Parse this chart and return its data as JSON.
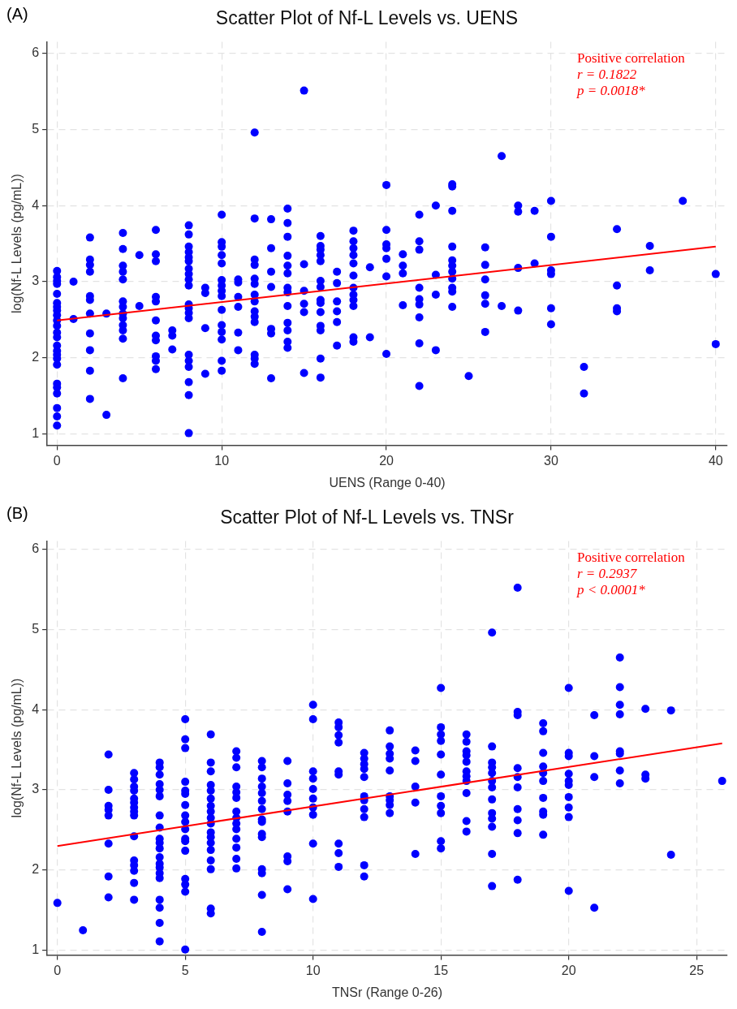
{
  "chart_data": [
    {
      "type": "scatter",
      "title": "Scatter Plot of Nf-L Levels vs. UENS",
      "xlabel": "UENS (Range 0-40)",
      "ylabel": "log(Nf-L Levels (pg/mL))",
      "annotations": [
        "(A)",
        "Positive correlation",
        "r = 0.1822",
        "p = 0.0018*"
      ],
      "xlim": [
        -0.6,
        40.7
      ],
      "ylim": [
        0.85,
        6.15
      ],
      "xticks": [
        0,
        10,
        20,
        30,
        40
      ],
      "yticks": [
        1,
        2,
        3,
        4,
        5,
        6
      ],
      "grid": true,
      "legend": false,
      "series": [
        {
          "type": "scatter",
          "color": "#0000ff",
          "marker": "circle",
          "x": [
            0,
            0,
            0,
            0,
            0,
            0,
            0,
            0,
            0,
            0,
            0,
            0,
            0,
            0,
            0,
            0,
            0,
            0,
            0,
            0,
            0,
            0,
            0,
            0,
            1,
            1,
            2,
            2,
            2,
            2,
            2,
            2,
            2,
            2,
            2,
            2,
            2,
            3,
            3,
            4,
            4,
            4,
            4,
            4,
            4,
            4,
            4,
            4,
            4,
            4,
            4,
            4,
            5,
            5,
            6,
            6,
            6,
            6,
            6,
            6,
            6,
            6,
            6,
            6,
            6,
            7,
            7,
            7,
            8,
            8,
            8,
            8,
            8,
            8,
            8,
            8,
            8,
            8,
            8,
            8,
            8,
            8,
            8,
            8,
            8,
            8,
            8,
            8,
            9,
            9,
            9,
            9,
            10,
            10,
            10,
            10,
            10,
            10,
            10,
            10,
            10,
            10,
            10,
            10,
            10,
            10,
            10,
            11,
            11,
            11,
            11,
            11,
            11,
            12,
            12,
            12,
            12,
            12,
            12,
            12,
            12,
            12,
            12,
            12,
            12,
            12,
            12,
            13,
            13,
            13,
            13,
            13,
            13,
            13,
            14,
            14,
            14,
            14,
            14,
            14,
            14,
            14,
            14,
            14,
            14,
            14,
            14,
            15,
            15,
            15,
            15,
            15,
            15,
            16,
            16,
            16,
            16,
            16,
            16,
            16,
            16,
            16,
            16,
            16,
            16,
            16,
            16,
            17,
            17,
            17,
            17,
            17,
            17,
            18,
            18,
            18,
            18,
            18,
            18,
            18,
            18,
            18,
            18,
            18,
            18,
            19,
            19,
            20,
            20,
            20,
            20,
            20,
            20,
            20,
            21,
            21,
            21,
            21,
            22,
            22,
            22,
            22,
            22,
            22,
            22,
            22,
            22,
            23,
            23,
            23,
            23,
            24,
            24,
            24,
            24,
            24,
            24,
            24,
            24,
            24,
            24,
            24,
            25,
            26,
            26,
            26,
            26,
            26,
            26,
            27,
            27,
            28,
            28,
            28,
            28,
            29,
            29,
            30,
            30,
            30,
            30,
            30,
            30,
            32,
            32,
            34,
            34,
            34,
            34,
            36,
            36,
            38,
            40,
            40
          ],
          "values": [
            3.14,
            3.06,
            3.01,
            2.97,
            2.84,
            2.72,
            2.67,
            2.62,
            2.56,
            2.49,
            2.42,
            2.33,
            2.27,
            2.16,
            2.09,
            2.04,
            1.99,
            1.91,
            1.66,
            1.61,
            1.53,
            1.34,
            1.23,
            1.11,
            3.0,
            2.51,
            3.58,
            3.29,
            3.22,
            3.13,
            2.81,
            2.76,
            2.58,
            2.32,
            2.1,
            1.83,
            1.46,
            2.58,
            1.25,
            3.64,
            3.43,
            3.21,
            3.13,
            3.03,
            2.74,
            2.67,
            2.58,
            2.52,
            2.43,
            2.36,
            2.25,
            1.73,
            3.35,
            2.68,
            3.68,
            3.36,
            3.27,
            2.8,
            2.74,
            2.49,
            2.29,
            2.23,
            2.02,
            1.96,
            1.85,
            2.36,
            2.29,
            2.11,
            3.74,
            3.62,
            3.46,
            3.39,
            3.32,
            3.27,
            3.17,
            3.1,
            3.03,
            2.95,
            2.7,
            2.65,
            2.59,
            2.52,
            2.04,
            1.96,
            1.88,
            1.68,
            1.51,
            1.01,
            2.92,
            2.85,
            2.39,
            1.79,
            3.88,
            3.52,
            3.46,
            3.35,
            3.24,
            3.02,
            2.95,
            2.88,
            2.81,
            2.63,
            2.43,
            2.34,
            2.24,
            1.96,
            1.83,
            3.03,
            2.99,
            2.8,
            2.67,
            2.33,
            2.1,
            4.96,
            3.83,
            3.29,
            3.22,
            3.04,
            2.97,
            2.83,
            2.74,
            2.61,
            2.54,
            2.47,
            2.04,
            1.99,
            1.92,
            3.82,
            3.44,
            3.13,
            2.93,
            2.38,
            2.32,
            1.73,
            3.96,
            3.77,
            3.59,
            3.34,
            3.21,
            3.11,
            2.92,
            2.86,
            2.68,
            2.46,
            2.36,
            2.21,
            2.13,
            5.51,
            3.23,
            2.88,
            2.71,
            2.6,
            1.8,
            3.6,
            3.47,
            3.42,
            3.35,
            3.27,
            3.01,
            2.93,
            2.76,
            2.72,
            2.6,
            2.42,
            2.36,
            1.99,
            1.74,
            3.13,
            2.98,
            2.74,
            2.61,
            2.47,
            2.16,
            3.67,
            3.53,
            3.44,
            3.35,
            3.24,
            3.08,
            2.92,
            2.83,
            2.76,
            2.68,
            2.27,
            2.21,
            3.19,
            2.27,
            4.27,
            3.68,
            3.49,
            3.44,
            3.3,
            3.07,
            2.05,
            3.36,
            3.21,
            3.11,
            2.69,
            3.88,
            3.53,
            3.42,
            2.92,
            2.77,
            2.7,
            2.53,
            2.19,
            1.63,
            4.0,
            3.09,
            2.83,
            2.1,
            4.28,
            4.25,
            3.93,
            3.46,
            3.28,
            3.21,
            3.13,
            3.04,
            2.92,
            2.87,
            2.67,
            1.76,
            3.45,
            3.22,
            3.03,
            2.82,
            2.71,
            2.34,
            4.65,
            2.68,
            4.0,
            3.92,
            3.18,
            2.62,
            3.93,
            3.24,
            4.06,
            3.59,
            3.15,
            3.1,
            2.65,
            2.44,
            1.88,
            1.53,
            3.69,
            2.95,
            2.65,
            2.61,
            3.47,
            3.15,
            4.06,
            3.1,
            2.18
          ]
        },
        {
          "type": "line",
          "color": "#ff0000",
          "marker": "none",
          "x": [
            0,
            40
          ],
          "values": [
            2.49,
            3.46
          ]
        }
      ]
    },
    {
      "type": "scatter",
      "title": "Scatter Plot of Nf-L Levels vs. TNSr",
      "xlabel": "TNSr (Range 0-26)",
      "ylabel": "log(Nf-L Levels (pg/mL))",
      "annotations": [
        "(B)",
        "Positive correlation",
        "r = 0.2937",
        "p < 0.0001*"
      ],
      "xlim": [
        -0.4,
        26.2
      ],
      "ylim": [
        0.94,
        6.1
      ],
      "xticks": [
        0,
        5,
        10,
        15,
        20,
        25
      ],
      "yticks": [
        1,
        2,
        3,
        4,
        5,
        6
      ],
      "grid": true,
      "legend": false,
      "series": [
        {
          "type": "scatter",
          "color": "#0000ff",
          "marker": "circle",
          "x": [
            0,
            1,
            2,
            2,
            2,
            2,
            2,
            2,
            2,
            2,
            3,
            3,
            3,
            3,
            3,
            3,
            3,
            3,
            3,
            3,
            3,
            3,
            3,
            3,
            3,
            4,
            4,
            4,
            4,
            4,
            4,
            4,
            4,
            4,
            4,
            4,
            4,
            4,
            4,
            4,
            4,
            4,
            4,
            4,
            4,
            5,
            5,
            5,
            5,
            5,
            5,
            5,
            5,
            5,
            5,
            5,
            5,
            5,
            5,
            5,
            5,
            5,
            6,
            6,
            6,
            6,
            6,
            6,
            6,
            6,
            6,
            6,
            6,
            6,
            6,
            6,
            6,
            6,
            6,
            6,
            7,
            7,
            7,
            7,
            7,
            7,
            7,
            7,
            7,
            7,
            7,
            7,
            7,
            7,
            8,
            8,
            8,
            8,
            8,
            8,
            8,
            8,
            8,
            8,
            8,
            8,
            8,
            8,
            8,
            9,
            9,
            9,
            9,
            9,
            9,
            9,
            9,
            10,
            10,
            10,
            10,
            10,
            10,
            10,
            10,
            10,
            10,
            11,
            11,
            11,
            11,
            11,
            11,
            11,
            11,
            11,
            12,
            12,
            12,
            12,
            12,
            12,
            12,
            12,
            12,
            12,
            12,
            13,
            13,
            13,
            13,
            13,
            13,
            13,
            13,
            13,
            14,
            14,
            14,
            14,
            14,
            15,
            15,
            15,
            15,
            15,
            15,
            15,
            15,
            15,
            15,
            15,
            16,
            16,
            16,
            16,
            16,
            16,
            16,
            16,
            16,
            16,
            16,
            17,
            17,
            17,
            17,
            17,
            17,
            17,
            17,
            17,
            17,
            17,
            17,
            17,
            18,
            18,
            18,
            18,
            18,
            18,
            18,
            18,
            18,
            18,
            19,
            19,
            19,
            19,
            19,
            19,
            19,
            19,
            19,
            19,
            20,
            20,
            20,
            20,
            20,
            20,
            20,
            20,
            20,
            20,
            21,
            21,
            21,
            21,
            22,
            22,
            22,
            22,
            22,
            22,
            22,
            22,
            23,
            23,
            23,
            24,
            24,
            26
          ],
          "values": [
            1.59,
            1.25,
            3.44,
            3.0,
            2.8,
            2.75,
            2.68,
            2.33,
            1.92,
            1.66,
            3.21,
            3.13,
            3.04,
            2.99,
            2.89,
            2.84,
            2.78,
            2.73,
            2.68,
            2.42,
            2.12,
            2.06,
            1.99,
            1.84,
            1.63,
            3.34,
            3.28,
            3.19,
            3.07,
            3.0,
            2.92,
            2.68,
            2.53,
            2.39,
            2.34,
            2.27,
            2.16,
            2.08,
            2.03,
            1.96,
            1.9,
            1.63,
            1.53,
            1.34,
            1.11,
            3.88,
            3.63,
            3.52,
            3.1,
            2.99,
            2.95,
            2.81,
            2.68,
            2.6,
            2.51,
            2.39,
            2.36,
            2.24,
            1.89,
            1.82,
            1.73,
            1.01,
            3.69,
            3.34,
            3.23,
            3.06,
            2.99,
            2.89,
            2.8,
            2.73,
            2.65,
            2.58,
            2.47,
            2.41,
            2.34,
            2.25,
            2.12,
            2.01,
            1.52,
            1.46,
            3.48,
            3.4,
            3.28,
            3.04,
            2.97,
            2.9,
            2.73,
            2.65,
            2.58,
            2.51,
            2.39,
            2.28,
            2.14,
            2.02,
            3.36,
            3.28,
            3.14,
            3.04,
            2.96,
            2.86,
            2.76,
            2.63,
            2.6,
            2.45,
            2.41,
            2.01,
            1.96,
            1.69,
            1.23,
            3.36,
            3.08,
            2.94,
            2.86,
            2.73,
            2.17,
            2.11,
            1.76,
            4.06,
            3.88,
            3.23,
            3.14,
            3.01,
            2.89,
            2.78,
            2.69,
            2.33,
            1.64,
            3.84,
            3.78,
            3.68,
            3.59,
            3.23,
            3.19,
            2.33,
            2.21,
            2.04,
            3.46,
            3.39,
            3.32,
            3.26,
            3.16,
            2.92,
            2.87,
            2.76,
            2.66,
            2.06,
            1.92,
            3.74,
            3.54,
            3.45,
            3.39,
            3.24,
            2.92,
            2.87,
            2.81,
            2.71,
            3.49,
            3.36,
            3.04,
            2.84,
            2.2,
            4.27,
            3.78,
            3.69,
            3.61,
            3.44,
            3.19,
            2.92,
            2.8,
            2.71,
            2.36,
            2.27,
            3.69,
            3.6,
            3.48,
            3.43,
            3.35,
            3.23,
            3.17,
            3.11,
            2.96,
            2.61,
            2.48,
            4.96,
            3.54,
            3.34,
            3.28,
            3.21,
            3.11,
            3.03,
            2.88,
            2.71,
            2.64,
            2.54,
            2.2,
            1.8,
            5.52,
            3.97,
            3.93,
            3.27,
            3.16,
            3.03,
            2.76,
            2.62,
            2.46,
            1.88,
            3.83,
            3.73,
            3.46,
            3.29,
            3.21,
            3.11,
            2.9,
            2.73,
            2.69,
            2.44,
            4.27,
            3.46,
            3.42,
            3.2,
            3.11,
            3.06,
            2.91,
            2.78,
            2.66,
            1.74,
            3.93,
            3.42,
            3.16,
            1.53,
            4.65,
            4.28,
            4.06,
            3.94,
            3.48,
            3.45,
            3.24,
            3.08,
            4.01,
            3.19,
            3.14,
            3.99,
            2.19,
            3.11
          ]
        },
        {
          "type": "line",
          "color": "#ff0000",
          "marker": "none",
          "x": [
            0,
            26
          ],
          "values": [
            2.3,
            3.58
          ]
        }
      ]
    }
  ]
}
